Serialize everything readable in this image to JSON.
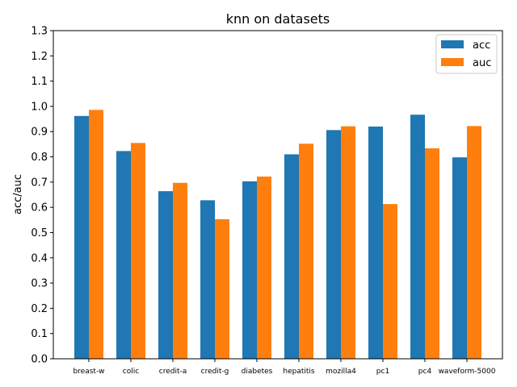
{
  "chart_data": {
    "type": "bar",
    "title": "knn on datasets",
    "xlabel": "",
    "ylabel": "acc/auc",
    "ylim": [
      0,
      1.3
    ],
    "yticks": [
      "0.0",
      "0.1",
      "0.2",
      "0.3",
      "0.4",
      "0.5",
      "0.6",
      "0.7",
      "0.8",
      "0.9",
      "1.0",
      "1.1",
      "1.2",
      "1.3"
    ],
    "categories": [
      "breast-w",
      "colic",
      "credit-a",
      "credit-g",
      "diabetes",
      "hepatitis",
      "mozilla4",
      "pc1",
      "pc4",
      "waveform-5000"
    ],
    "series": [
      {
        "name": "acc",
        "color": "#1f77b4",
        "values": [
          0.962,
          0.823,
          0.664,
          0.628,
          0.703,
          0.81,
          0.906,
          0.92,
          0.967,
          0.798
        ]
      },
      {
        "name": "auc",
        "color": "#ff7f0e",
        "values": [
          0.986,
          0.855,
          0.697,
          0.553,
          0.722,
          0.852,
          0.921,
          0.613,
          0.834,
          0.922
        ]
      }
    ],
    "legend": "top-right",
    "grid": false
  }
}
